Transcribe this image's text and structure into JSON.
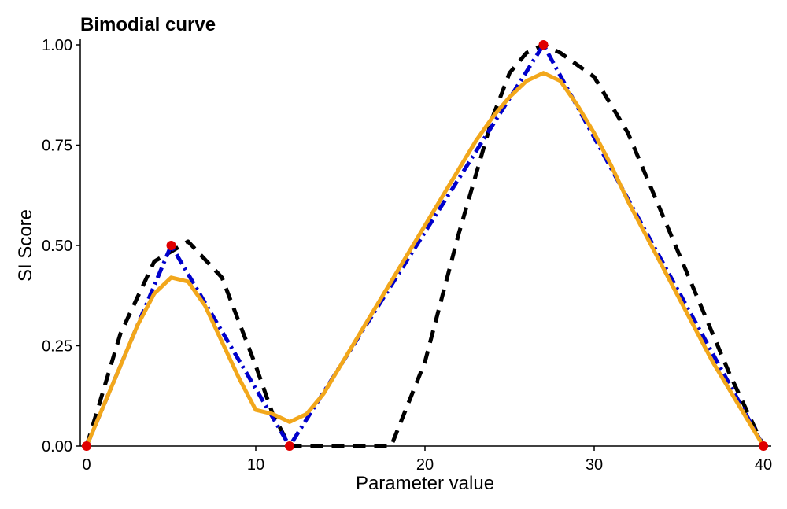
{
  "chart_data": {
    "type": "line",
    "title": "Bimodial curve",
    "xlabel": "Parameter value",
    "ylabel": "SI Score",
    "xlim": [
      0,
      40
    ],
    "ylim": [
      0,
      1
    ],
    "x_ticks": [
      0,
      10,
      20,
      30,
      40
    ],
    "x_tick_labels": [
      "0",
      "10",
      "20",
      "30",
      "40"
    ],
    "y_ticks": [
      0,
      0.25,
      0.5,
      0.75,
      1.0
    ],
    "y_tick_labels": [
      "0.00",
      "0.25",
      "0.50",
      "0.75",
      "1.00"
    ],
    "grid": false,
    "legend": "none",
    "series": [
      {
        "style": "dashed",
        "color": "#000000",
        "x": [
          0,
          2,
          4,
          6,
          8,
          10,
          11,
          12,
          14,
          16,
          17,
          18,
          20,
          22,
          24,
          25,
          26,
          27,
          28,
          30,
          32,
          34,
          36,
          38,
          40
        ],
        "y": [
          0,
          0.28,
          0.46,
          0.51,
          0.42,
          0.2,
          0.08,
          0,
          0,
          0,
          0,
          0,
          0.21,
          0.53,
          0.82,
          0.93,
          0.98,
          1.0,
          0.98,
          0.92,
          0.78,
          0.58,
          0.38,
          0.18,
          0
        ]
      },
      {
        "style": "dot-dash",
        "color": "#0000cc",
        "x": [
          0,
          5,
          12,
          27,
          40
        ],
        "y": [
          0,
          0.5,
          0,
          1.0,
          0
        ]
      },
      {
        "style": "solid",
        "color": "#f2a71b",
        "x": [
          0,
          1,
          2,
          3,
          4,
          5,
          6,
          7,
          8,
          9,
          10,
          11,
          12,
          13,
          14,
          15,
          16,
          17,
          18,
          19,
          20,
          21,
          22,
          23,
          24,
          25,
          26,
          27,
          28,
          29,
          30,
          31,
          32,
          33,
          34,
          35,
          36,
          37,
          38,
          39,
          40
        ],
        "y": [
          0,
          0.1,
          0.2,
          0.3,
          0.38,
          0.42,
          0.41,
          0.35,
          0.26,
          0.17,
          0.09,
          0.08,
          0.06,
          0.08,
          0.13,
          0.2,
          0.27,
          0.34,
          0.41,
          0.48,
          0.55,
          0.62,
          0.69,
          0.76,
          0.82,
          0.87,
          0.91,
          0.93,
          0.91,
          0.85,
          0.78,
          0.7,
          0.61,
          0.53,
          0.45,
          0.37,
          0.29,
          0.21,
          0.14,
          0.07,
          0
        ]
      }
    ],
    "points": {
      "color": "#e00000",
      "x": [
        0,
        5,
        12,
        27,
        40
      ],
      "y": [
        0,
        0.5,
        0,
        1.0,
        0
      ]
    }
  }
}
